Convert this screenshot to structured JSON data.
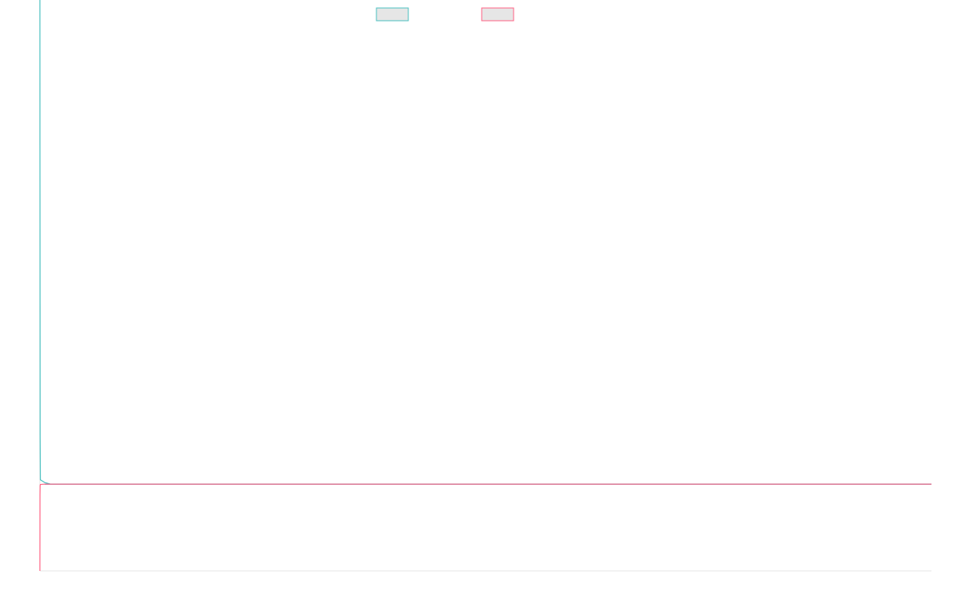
{
  "chart_data": {
    "type": "line",
    "title": "",
    "xlabel": "",
    "ylabel": "",
    "legend": {
      "placement": "top-center"
    },
    "series": [
      {
        "color": "#4bc0c0",
        "values": [
          100,
          62.5,
          51.2,
          8.7,
          0.8,
          0.3,
          0.0,
          0.0,
          0.0,
          0.0,
          0.0,
          0.0,
          0.0,
          0.0,
          0.0,
          0.0,
          0.0,
          0.0,
          0.0,
          0.0
        ]
      },
      {
        "color": "#ff6384",
        "values": [
          -16.0,
          -9.9,
          -2.0,
          -0.3,
          -0.05,
          0.0,
          0.0,
          0.0,
          0.0,
          0.0,
          0.0,
          0.0,
          0.0,
          0.0,
          0.0,
          0.0,
          0.0,
          0.0,
          0.0,
          0.0
        ]
      }
    ],
    "x": [
      0,
      0.01,
      0.02,
      0.05,
      0.1,
      1,
      10,
      100,
      200,
      300,
      400,
      500,
      600,
      700,
      800,
      900,
      1000,
      1100,
      1200,
      1300
    ],
    "xlim": [
      0,
      1300
    ],
    "ylim": [
      -16,
      84
    ],
    "reference_line": {
      "y": 0,
      "color": "#5b8fbf"
    },
    "grid": false
  }
}
